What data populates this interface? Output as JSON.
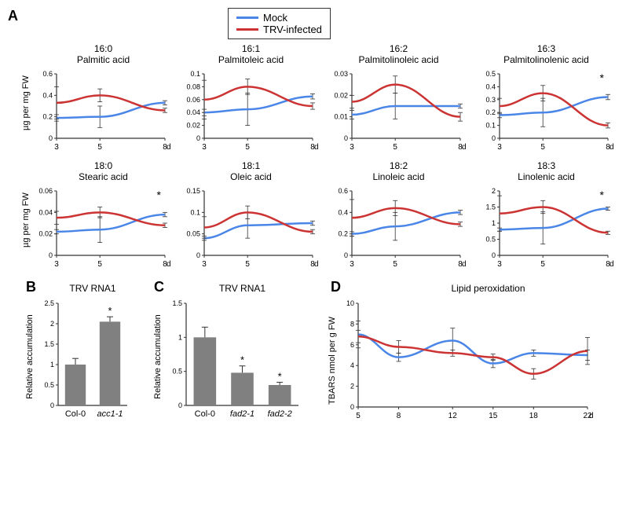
{
  "colors": {
    "mock": "#4a86e8",
    "trv": "#cc3333",
    "bar": "#808080",
    "axis": "#333333",
    "errbar": "#333333"
  },
  "legend": {
    "mock": "Mock",
    "trv": "TRV-infected"
  },
  "panelA": {
    "label": "A",
    "ylabel": "µg per mg FW",
    "xlabel": "dpi",
    "xticks": [
      3,
      5,
      8
    ],
    "charts": [
      {
        "title_top": "16:0",
        "title_bot": "Palmitic acid",
        "ylim": [
          0,
          0.6
        ],
        "yticks": [
          0,
          0.2,
          0.4,
          0.6
        ],
        "mock": [
          0.19,
          0.2,
          0.33
        ],
        "trv": [
          0.33,
          0.4,
          0.26
        ],
        "mock_err": [
          0.03,
          0.1,
          0.02
        ],
        "trv_err": [
          0.15,
          0.06,
          0.02
        ],
        "sig": ""
      },
      {
        "title_top": "16:1",
        "title_bot": "Palmitoleic acid",
        "ylim": [
          0,
          0.1
        ],
        "yticks": [
          0,
          0.02,
          0.04,
          0.06,
          0.08,
          0.1
        ],
        "mock": [
          0.04,
          0.045,
          0.065
        ],
        "trv": [
          0.06,
          0.08,
          0.05
        ],
        "mock_err": [
          0.005,
          0.025,
          0.004
        ],
        "trv_err": [
          0.03,
          0.012,
          0.005
        ],
        "sig": ""
      },
      {
        "title_top": "16:2",
        "title_bot": "Palmitolinoleic acid",
        "ylim": [
          0,
          0.03
        ],
        "yticks": [
          0,
          0.01,
          0.02,
          0.03
        ],
        "mock": [
          0.011,
          0.015,
          0.015
        ],
        "trv": [
          0.017,
          0.025,
          0.01
        ],
        "mock_err": [
          0.002,
          0.006,
          0.001
        ],
        "trv_err": [
          0.003,
          0.004,
          0.002
        ],
        "sig": ""
      },
      {
        "title_top": "16:3",
        "title_bot": "Palmitolinolenic acid",
        "ylim": [
          0,
          0.5
        ],
        "yticks": [
          0,
          0.1,
          0.2,
          0.3,
          0.4,
          0.5
        ],
        "mock": [
          0.18,
          0.2,
          0.32
        ],
        "trv": [
          0.25,
          0.35,
          0.1
        ],
        "mock_err": [
          0.02,
          0.11,
          0.02
        ],
        "trv_err": [
          0.06,
          0.06,
          0.02
        ],
        "sig": "*"
      },
      {
        "title_top": "18:0",
        "title_bot": "Stearic acid",
        "ylim": [
          0,
          0.06
        ],
        "yticks": [
          0,
          0.02,
          0.04,
          0.06
        ],
        "mock": [
          0.022,
          0.024,
          0.038
        ],
        "trv": [
          0.035,
          0.04,
          0.028
        ],
        "mock_err": [
          0.002,
          0.012,
          0.002
        ],
        "trv_err": [
          0.006,
          0.005,
          0.002
        ],
        "sig": "*"
      },
      {
        "title_top": "18:1",
        "title_bot": "Oleic acid",
        "ylim": [
          0,
          0.15
        ],
        "yticks": [
          0,
          0.05,
          0.1,
          0.15
        ],
        "mock": [
          0.04,
          0.07,
          0.075
        ],
        "trv": [
          0.065,
          0.1,
          0.055
        ],
        "mock_err": [
          0.005,
          0.03,
          0.005
        ],
        "trv_err": [
          0.025,
          0.015,
          0.005
        ],
        "sig": ""
      },
      {
        "title_top": "18:2",
        "title_bot": "Linoleic acid",
        "ylim": [
          0,
          0.6
        ],
        "yticks": [
          0,
          0.2,
          0.4,
          0.6
        ],
        "mock": [
          0.2,
          0.27,
          0.4
        ],
        "trv": [
          0.35,
          0.44,
          0.29
        ],
        "mock_err": [
          0.02,
          0.13,
          0.02
        ],
        "trv_err": [
          0.17,
          0.07,
          0.02
        ],
        "sig": ""
      },
      {
        "title_top": "18:3",
        "title_bot": "Linolenic acid",
        "ylim": [
          0,
          2
        ],
        "yticks": [
          0,
          0.5,
          1,
          1.5,
          2
        ],
        "mock": [
          0.8,
          0.85,
          1.45
        ],
        "trv": [
          1.3,
          1.5,
          0.7
        ],
        "mock_err": [
          0.05,
          0.5,
          0.05
        ],
        "trv_err": [
          0.55,
          0.2,
          0.05
        ],
        "sig": "*"
      }
    ]
  },
  "panelB": {
    "label": "B",
    "title": "TRV RNA1",
    "ylabel": "Relative accumulation",
    "xlabels": [
      "Col-0",
      "acc1-1"
    ],
    "values": [
      1.0,
      2.05
    ],
    "errors": [
      0.15,
      0.12
    ],
    "ylim": [
      0,
      2.5
    ],
    "yticks": [
      0,
      0.5,
      1,
      1.5,
      2,
      2.5
    ],
    "sig": [
      "",
      "*"
    ],
    "italic": [
      false,
      true
    ]
  },
  "panelC": {
    "label": "C",
    "title": "TRV RNA1",
    "ylabel": "Relative accumulation",
    "xlabels": [
      "Col-0",
      "fad2-1",
      "fad2-2"
    ],
    "values": [
      1.0,
      0.48,
      0.3
    ],
    "errors": [
      0.15,
      0.1,
      0.04
    ],
    "ylim": [
      0,
      1.5
    ],
    "yticks": [
      0,
      0.5,
      1,
      1.5
    ],
    "sig": [
      "",
      "*",
      "*"
    ],
    "italic": [
      false,
      true,
      true
    ]
  },
  "panelD": {
    "label": "D",
    "title": "Lipid peroxidation",
    "ylabel": "TBARS nmol per g FW",
    "xlabel": "dpi",
    "xticks": [
      5,
      8,
      12,
      15,
      18,
      22
    ],
    "ylim": [
      0,
      10
    ],
    "yticks": [
      0,
      2,
      4,
      6,
      8,
      10
    ],
    "mock": [
      7.0,
      4.8,
      6.4,
      4.2,
      5.2,
      5.0
    ],
    "trv": [
      6.8,
      5.8,
      5.2,
      4.8,
      3.2,
      5.4
    ],
    "mock_err": [
      1.3,
      0.4,
      1.2,
      0.4,
      0.3,
      0.5
    ],
    "trv_err": [
      0.6,
      0.6,
      0.3,
      0.3,
      0.5,
      1.3
    ]
  }
}
